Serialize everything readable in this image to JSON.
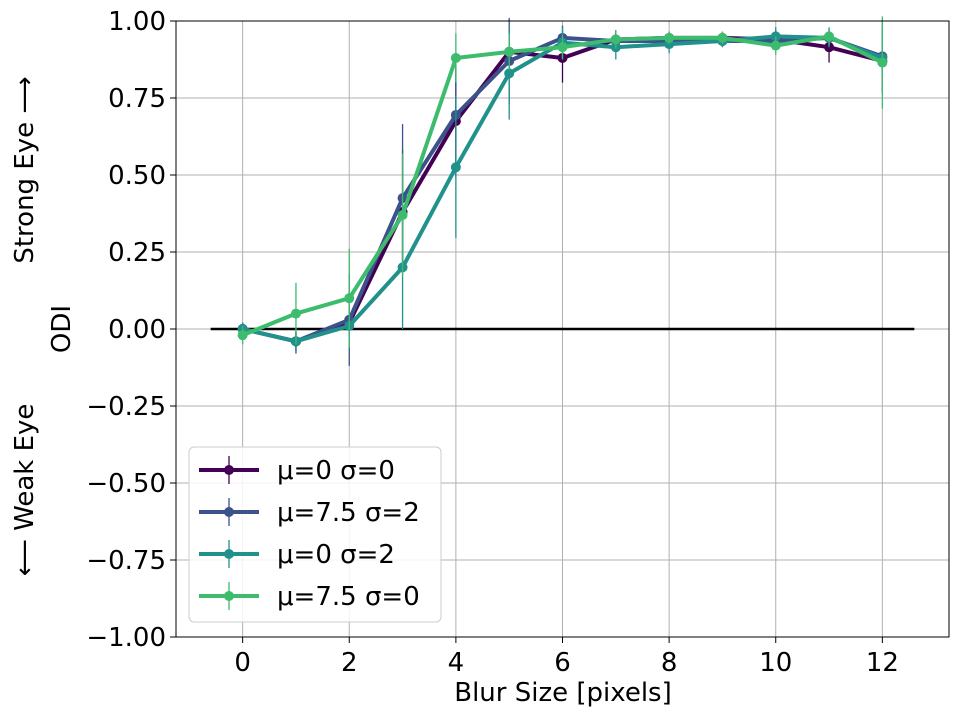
{
  "chart_data": {
    "type": "line",
    "xlabel": "Blur Size [pixels]",
    "ylabel": "ODI",
    "side_label_top": "Strong Eye ⟶",
    "side_label_bottom": "⟵ Weak Eye",
    "xlim": [
      -1.25,
      13.25
    ],
    "ylim": [
      -1.0,
      1.0
    ],
    "xticks": [
      0,
      2,
      4,
      6,
      8,
      10,
      12
    ],
    "yticks": [
      -1.0,
      -0.75,
      -0.5,
      -0.25,
      0.0,
      0.25,
      0.5,
      0.75,
      1.0
    ],
    "ytick_labels": [
      "−1.00",
      "−0.75",
      "−0.50",
      "−0.25",
      "0.00",
      "0.25",
      "0.50",
      "0.75",
      "1.00"
    ],
    "grid": true,
    "legend_position": "lower-left",
    "reference_line": {
      "y": 0.0,
      "x": [
        -0.6,
        12.6
      ],
      "color": "#000000"
    },
    "x": [
      0,
      1,
      2,
      3,
      4,
      5,
      6,
      7,
      8,
      9,
      10,
      11,
      12
    ],
    "series": [
      {
        "name": "μ=0 σ=0",
        "color": "#440154",
        "values": [
          0.0,
          -0.04,
          0.02,
          0.38,
          0.675,
          0.9,
          0.88,
          0.94,
          0.945,
          0.945,
          0.94,
          0.915,
          0.87
        ],
        "errors": [
          0.02,
          0.03,
          0.05,
          0.2,
          0.18,
          0.08,
          0.08,
          0.03,
          0.02,
          0.02,
          0.03,
          0.05,
          0.1
        ]
      },
      {
        "name": "μ=7.5 σ=2",
        "color": "#3b528b",
        "values": [
          0.0,
          -0.04,
          0.03,
          0.425,
          0.695,
          0.87,
          0.945,
          0.935,
          0.935,
          0.935,
          0.935,
          0.945,
          0.885
        ],
        "errors": [
          0.02,
          0.04,
          0.15,
          0.24,
          0.15,
          0.14,
          0.04,
          0.03,
          0.02,
          0.02,
          0.03,
          0.03,
          0.12
        ]
      },
      {
        "name": "μ=0 σ=2",
        "color": "#21918c",
        "values": [
          0.0,
          -0.04,
          0.01,
          0.2,
          0.525,
          0.83,
          0.93,
          0.915,
          0.925,
          0.935,
          0.95,
          0.945,
          0.88
        ],
        "errors": [
          0.02,
          0.03,
          0.05,
          0.2,
          0.23,
          0.15,
          0.05,
          0.04,
          0.03,
          0.02,
          0.03,
          0.03,
          0.1
        ]
      },
      {
        "name": "μ=7.5 σ=0",
        "color": "#3dbc6e",
        "values": [
          -0.02,
          0.05,
          0.1,
          0.37,
          0.88,
          0.9,
          0.915,
          0.94,
          0.945,
          0.945,
          0.92,
          0.95,
          0.865
        ],
        "errors": [
          0.03,
          0.1,
          0.16,
          0.2,
          0.08,
          0.06,
          0.04,
          0.03,
          0.02,
          0.02,
          0.03,
          0.03,
          0.15
        ]
      }
    ]
  }
}
